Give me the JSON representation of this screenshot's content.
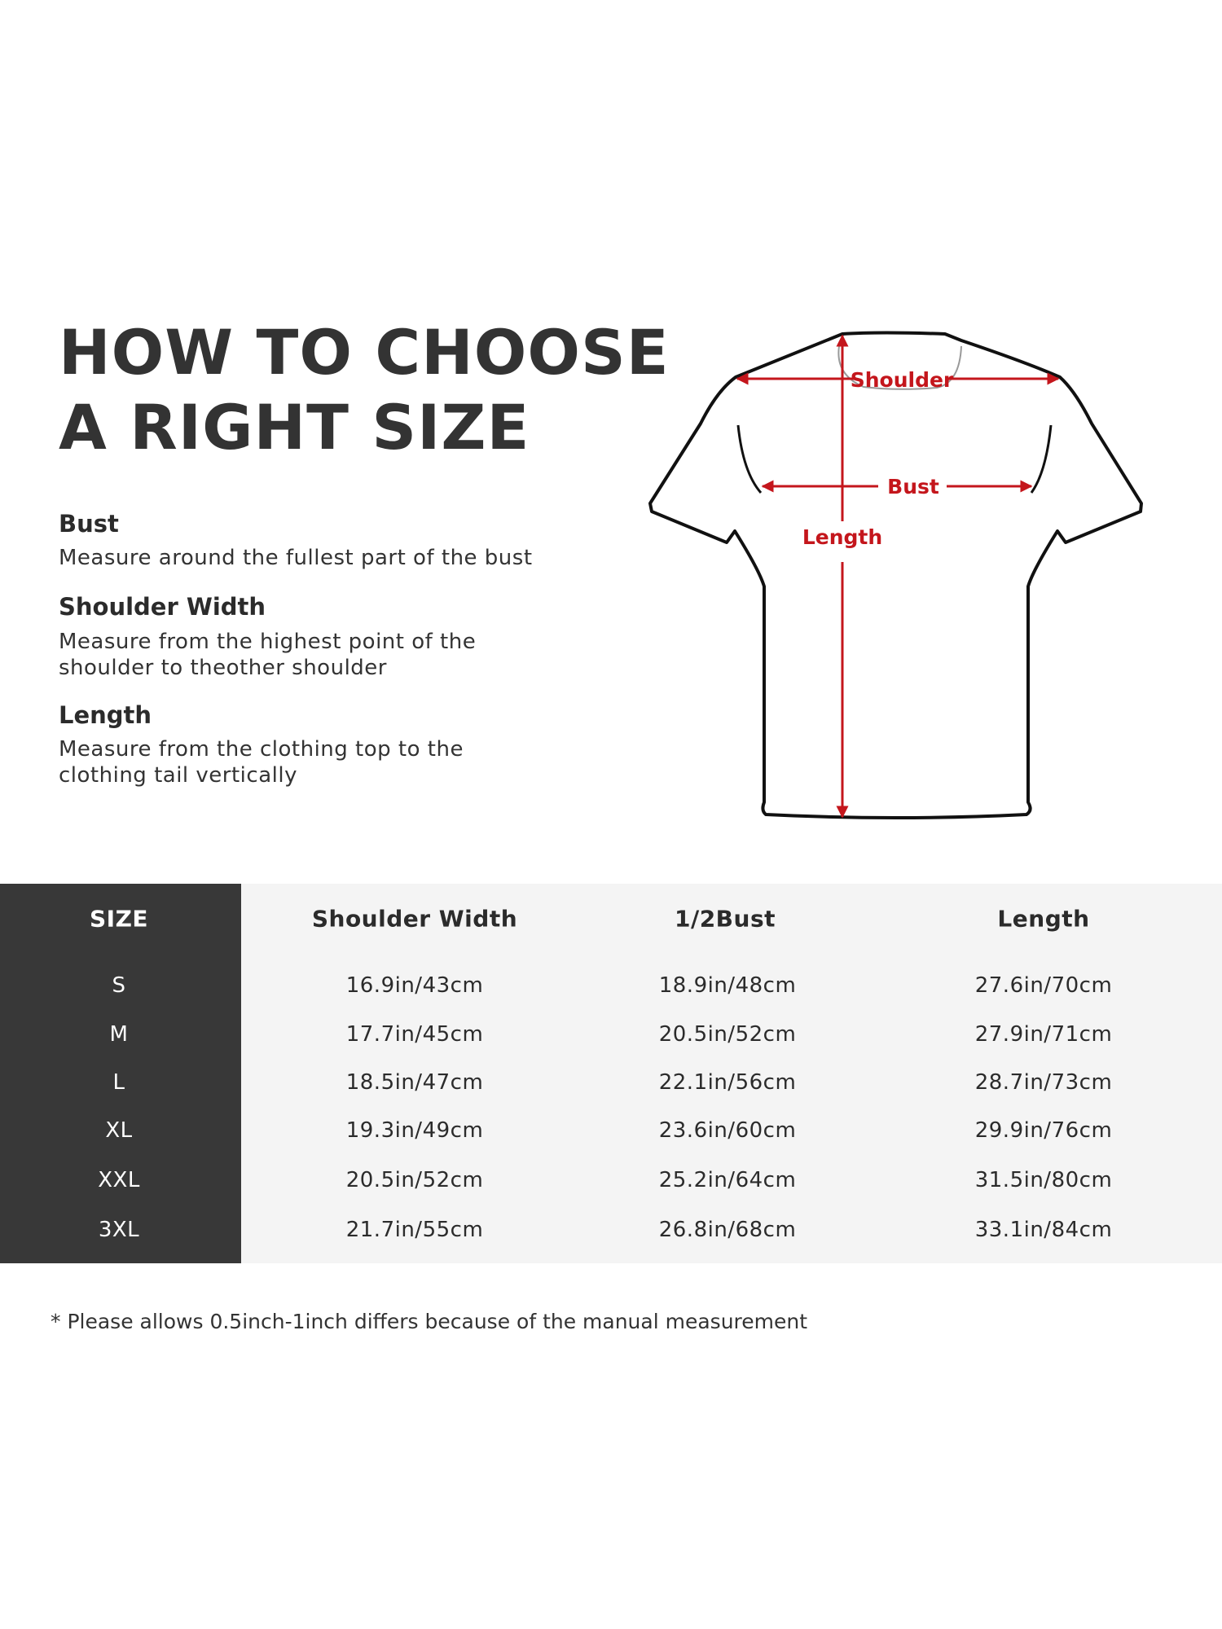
{
  "title": {
    "line1": "HOW TO CHOOSE",
    "line2": "A RIGHT SIZE"
  },
  "guide": [
    {
      "heading": "Bust",
      "desc": [
        "Measure around the fullest part of the bust"
      ]
    },
    {
      "heading": "Shoulder Width",
      "desc": [
        "Measure from the highest point of the",
        "shoulder to theother shoulder"
      ]
    },
    {
      "heading": "Length",
      "desc": [
        "Measure from the clothing top to the",
        "clothing tail vertically"
      ]
    }
  ],
  "diagram": {
    "shoulder": "Shoulder",
    "bust": "Bust",
    "length": "Length",
    "accent_color": "#c4161c"
  },
  "table": {
    "headers": [
      "SIZE",
      "Shoulder Width",
      "1/2Bust",
      "Length"
    ],
    "rows": [
      [
        "S",
        "16.9in/43cm",
        "18.9in/48cm",
        "27.6in/70cm"
      ],
      [
        "M",
        "17.7in/45cm",
        "20.5in/52cm",
        "27.9in/71cm"
      ],
      [
        "L",
        "18.5in/47cm",
        "22.1in/56cm",
        "28.7in/73cm"
      ],
      [
        "XL",
        "19.3in/49cm",
        "23.6in/60cm",
        "29.9in/76cm"
      ],
      [
        "XXL",
        "20.5in/52cm",
        "25.2in/64cm",
        "31.5in/80cm"
      ],
      [
        "3XL",
        "21.7in/55cm",
        "26.8in/68cm",
        "33.1in/84cm"
      ]
    ]
  },
  "note": "* Please allows 0.5inch-1inch differs because of the  manual measurement"
}
